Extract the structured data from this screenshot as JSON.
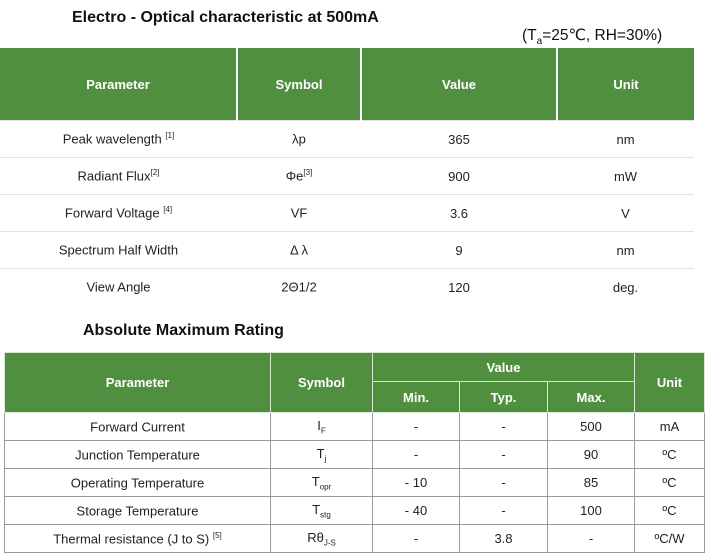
{
  "section1": {
    "title": "Electro - Optical characteristic at 500mA",
    "condition": {
      "prefix": "(T",
      "sub": "a",
      "suffix": "=25℃, RH=30%)"
    },
    "headers": [
      "Parameter",
      "Symbol",
      "Value",
      "Unit"
    ],
    "rows": [
      {
        "param": "Peak wavelength ",
        "param_sup": "[1]",
        "symbol": "λp",
        "symbol_sup": "",
        "value": "365",
        "unit": "nm"
      },
      {
        "param": "Radiant Flux",
        "param_sup": "[2]",
        "symbol": "Φe",
        "symbol_sup": "[3]",
        "value": "900",
        "unit": "mW"
      },
      {
        "param": "Forward Voltage ",
        "param_sup": "[4]",
        "symbol": "VF",
        "symbol_sup": "",
        "value": "3.6",
        "unit": "V"
      },
      {
        "param": "Spectrum Half Width",
        "param_sup": "",
        "symbol": "Δ λ",
        "symbol_sup": "",
        "value": "9",
        "unit": "nm"
      },
      {
        "param": "View Angle",
        "param_sup": "",
        "symbol": "2Θ1/2",
        "symbol_sup": "",
        "value": "120",
        "unit": "deg."
      }
    ]
  },
  "section2": {
    "title": "Absolute Maximum Rating",
    "headers": {
      "parameter": "Parameter",
      "symbol": "Symbol",
      "value": "Value",
      "unit": "Unit",
      "min": "Min.",
      "typ": "Typ.",
      "max": "Max."
    },
    "rows": [
      {
        "param": "Forward Current",
        "param_sup": "",
        "sym": "I",
        "sym_sub": "F",
        "min": "-",
        "typ": "-",
        "max": "500",
        "unit": "mA"
      },
      {
        "param": "Junction Temperature",
        "param_sup": "",
        "sym": "T",
        "sym_sub": "j",
        "min": "-",
        "typ": "-",
        "max": "90",
        "unit": "ºC"
      },
      {
        "param": "Operating Temperature",
        "param_sup": "",
        "sym": "T",
        "sym_sub": "opr",
        "min": "- 10",
        "typ": "-",
        "max": "85",
        "unit": "ºC"
      },
      {
        "param": "Storage  Temperature",
        "param_sup": "",
        "sym": "T",
        "sym_sub": "stg",
        "min": "- 40",
        "typ": "-",
        "max": "100",
        "unit": "ºC"
      },
      {
        "param": "Thermal resistance (J to S) ",
        "param_sup": "[5]",
        "sym": "Rθ",
        "sym_sub": "J-S",
        "min": "-",
        "typ": "3.8",
        "max": "-",
        "unit": "ºC/W"
      }
    ]
  },
  "colors": {
    "header_green": "#4f8f3f",
    "header_text": "#ffffff"
  }
}
